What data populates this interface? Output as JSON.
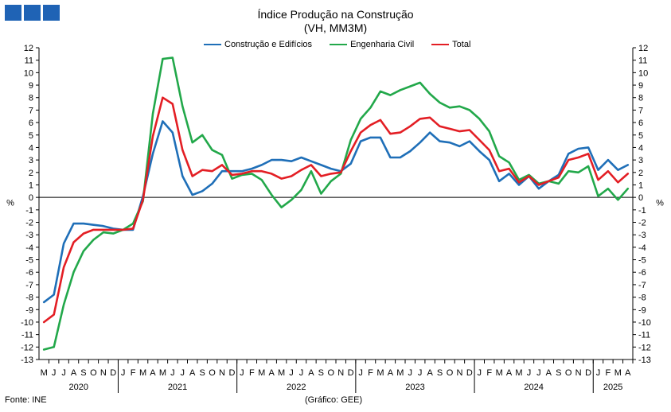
{
  "header": {
    "logo_colors": [
      "#1f63b5",
      "#1f63b5",
      "#1f63b5"
    ],
    "title": "Índice Produção na Construção",
    "subtitle": "(VH, MM3M)"
  },
  "footer": {
    "source": "Fonte: INE",
    "credit": "(Gráfico: GEE)"
  },
  "chart_data": {
    "type": "line",
    "ylabel_left": "%",
    "ylabel_right": "%",
    "ylim": [
      -13,
      12
    ],
    "yticks": [
      12,
      11,
      10,
      9,
      8,
      7,
      6,
      5,
      4,
      3,
      2,
      1,
      0,
      -1,
      -2,
      -3,
      -4,
      -5,
      -6,
      -7,
      -8,
      -9,
      -10,
      -11,
      -12,
      -13
    ],
    "grid": false,
    "legend_position": "top",
    "x": [
      "M",
      "J",
      "J",
      "A",
      "S",
      "O",
      "N",
      "D",
      "J",
      "F",
      "M",
      "A",
      "M",
      "J",
      "J",
      "A",
      "S",
      "O",
      "N",
      "D",
      "J",
      "F",
      "M",
      "A",
      "M",
      "J",
      "J",
      "A",
      "S",
      "O",
      "N",
      "D",
      "J",
      "F",
      "M",
      "A",
      "M",
      "J",
      "J",
      "A",
      "S",
      "O",
      "N",
      "D",
      "J",
      "F",
      "M",
      "A",
      "M",
      "J",
      "J",
      "A",
      "S",
      "O",
      "N",
      "D",
      "J",
      "F",
      "M",
      "A"
    ],
    "year_labels": [
      {
        "label": "2020",
        "start": 0,
        "end": 7
      },
      {
        "label": "2021",
        "start": 8,
        "end": 19
      },
      {
        "label": "2022",
        "start": 20,
        "end": 31
      },
      {
        "label": "2023",
        "start": 32,
        "end": 43
      },
      {
        "label": "2024",
        "start": 44,
        "end": 55
      },
      {
        "label": "2025",
        "start": 56,
        "end": 59
      }
    ],
    "series": [
      {
        "name": "Construção e Edifícios",
        "color": "#1f6fb8",
        "values": [
          -8.4,
          -7.8,
          -3.7,
          -2.1,
          -2.1,
          -2.2,
          -2.3,
          -2.5,
          -2.6,
          -2.6,
          0.1,
          3.5,
          6.1,
          5.2,
          1.7,
          0.2,
          0.5,
          1.1,
          2.1,
          2.1,
          2.1,
          2.3,
          2.6,
          3.0,
          3.0,
          2.9,
          3.2,
          2.9,
          2.6,
          2.3,
          2.1,
          2.7,
          4.5,
          4.8,
          4.8,
          3.2,
          3.2,
          3.7,
          4.4,
          5.2,
          4.5,
          4.4,
          4.1,
          4.5,
          3.7,
          3.0,
          1.3,
          1.9,
          1.0,
          1.7,
          0.7,
          1.3,
          1.8,
          3.5,
          3.9,
          4.0,
          2.2,
          3.0,
          2.2,
          2.6
        ]
      },
      {
        "name": "Engenharia Civil",
        "color": "#22a84a",
        "values": [
          -12.2,
          -12.0,
          -8.6,
          -6.0,
          -4.3,
          -3.4,
          -2.8,
          -2.9,
          -2.6,
          -2.1,
          -0.3,
          6.7,
          11.1,
          11.2,
          7.3,
          4.4,
          5.0,
          3.8,
          3.4,
          1.5,
          1.8,
          1.9,
          1.4,
          0.2,
          -0.8,
          -0.2,
          0.6,
          2.1,
          0.3,
          1.3,
          1.9,
          4.6,
          6.3,
          7.2,
          8.5,
          8.2,
          8.6,
          8.9,
          9.2,
          8.3,
          7.6,
          7.2,
          7.3,
          7.0,
          6.3,
          5.3,
          3.3,
          2.8,
          1.4,
          1.8,
          1.1,
          1.3,
          1.1,
          2.1,
          2.0,
          2.5,
          0.1,
          0.7,
          -0.2,
          0.7
        ]
      },
      {
        "name": "Total",
        "color": "#e31e24",
        "values": [
          -10.0,
          -9.4,
          -5.6,
          -3.6,
          -2.9,
          -2.6,
          -2.6,
          -2.6,
          -2.6,
          -2.5,
          -0.2,
          4.9,
          8.0,
          7.5,
          3.8,
          1.7,
          2.2,
          2.1,
          2.6,
          1.8,
          1.9,
          2.1,
          2.1,
          1.9,
          1.5,
          1.7,
          2.2,
          2.6,
          1.7,
          1.9,
          2.0,
          3.7,
          5.2,
          5.8,
          6.2,
          5.1,
          5.2,
          5.7,
          6.3,
          6.4,
          5.7,
          5.5,
          5.3,
          5.4,
          4.6,
          3.8,
          2.1,
          2.3,
          1.2,
          1.7,
          1.0,
          1.3,
          1.6,
          3.0,
          3.2,
          3.5,
          1.4,
          2.1,
          1.2,
          1.9
        ]
      }
    ]
  }
}
